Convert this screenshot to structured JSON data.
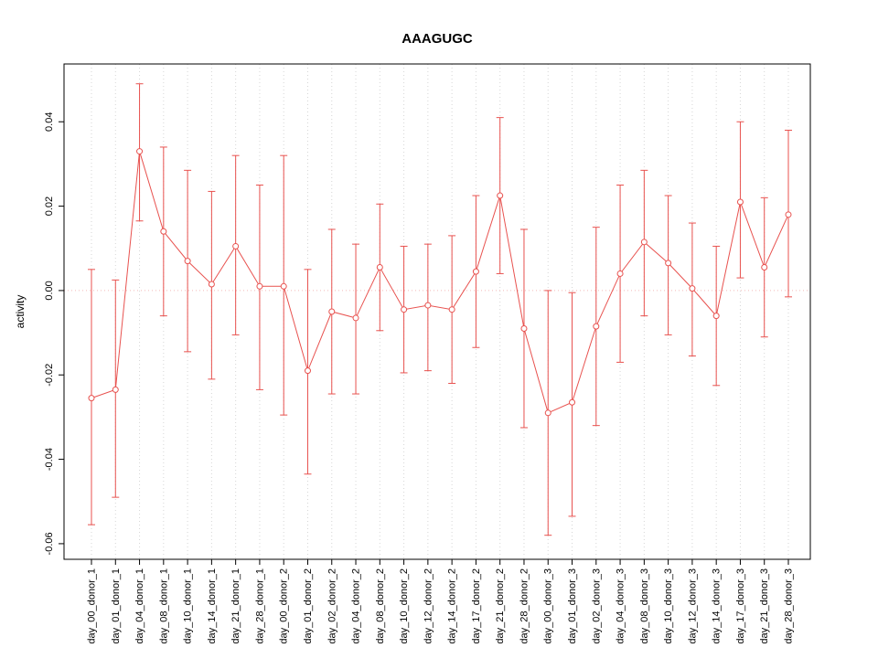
{
  "chart_data": {
    "type": "line",
    "title": "AAAGUGC",
    "xlabel": "",
    "ylabel": "activity",
    "categories": [
      "day_00_donor_1",
      "day_01_donor_1",
      "day_04_donor_1",
      "day_08_donor_1",
      "day_10_donor_1",
      "day_14_donor_1",
      "day_21_donor_1",
      "day_28_donor_1",
      "day_00_donor_2",
      "day_01_donor_2",
      "day_02_donor_2",
      "day_04_donor_2",
      "day_08_donor_2",
      "day_10_donor_2",
      "day_12_donor_2",
      "day_14_donor_2",
      "day_17_donor_2",
      "day_21_donor_2",
      "day_28_donor_2",
      "day_00_donor_3",
      "day_01_donor_3",
      "day_02_donor_3",
      "day_04_donor_3",
      "day_08_donor_3",
      "day_10_donor_3",
      "day_12_donor_3",
      "day_14_donor_3",
      "day_17_donor_3",
      "day_21_donor_3",
      "day_28_donor_3"
    ],
    "series": [
      {
        "name": "activity",
        "values": [
          -0.0255,
          -0.0235,
          0.033,
          0.014,
          0.007,
          0.0015,
          0.0105,
          0.001,
          0.001,
          -0.019,
          -0.005,
          -0.0065,
          0.0055,
          -0.0045,
          -0.0035,
          -0.0045,
          0.0045,
          0.0225,
          -0.009,
          -0.029,
          -0.0265,
          -0.0085,
          0.004,
          0.0115,
          0.0065,
          0.0005,
          -0.006,
          0.021,
          0.0055,
          0.018
        ],
        "error_low": [
          -0.0555,
          -0.049,
          0.0165,
          -0.006,
          -0.0145,
          -0.021,
          -0.0105,
          -0.0235,
          -0.0295,
          -0.0435,
          -0.0245,
          -0.0245,
          -0.0095,
          -0.0195,
          -0.019,
          -0.022,
          -0.0135,
          0.004,
          -0.0325,
          -0.058,
          -0.0535,
          -0.032,
          -0.017,
          -0.006,
          -0.0105,
          -0.0155,
          -0.0225,
          0.003,
          -0.011,
          -0.0015
        ],
        "error_high": [
          0.005,
          0.0025,
          0.049,
          0.034,
          0.0285,
          0.0235,
          0.032,
          0.025,
          0.032,
          0.005,
          0.0145,
          0.011,
          0.0205,
          0.0105,
          0.011,
          0.013,
          0.0225,
          0.041,
          0.0145,
          0.0,
          -0.0005,
          0.015,
          0.025,
          0.0285,
          0.0225,
          0.016,
          0.0105,
          0.04,
          0.022,
          0.038
        ]
      }
    ],
    "ylim": [
      -0.0637,
      0.0537
    ],
    "yticks": [
      -0.06,
      -0.04,
      -0.02,
      0.0,
      0.02,
      0.04
    ],
    "ytick_labels": [
      "-0.06",
      "-0.04",
      "-0.02",
      "0.00",
      "0.02",
      "0.04"
    ],
    "grid": "vertical-dotted-per-category",
    "zero_line": "dotted",
    "legend_position": "none",
    "marker": "open-circle",
    "colors": {
      "series": "#e8524f",
      "grid": "#d6d6d6",
      "zero_line": "#f3b9b8",
      "axis": "#000000",
      "background": "#ffffff"
    }
  }
}
